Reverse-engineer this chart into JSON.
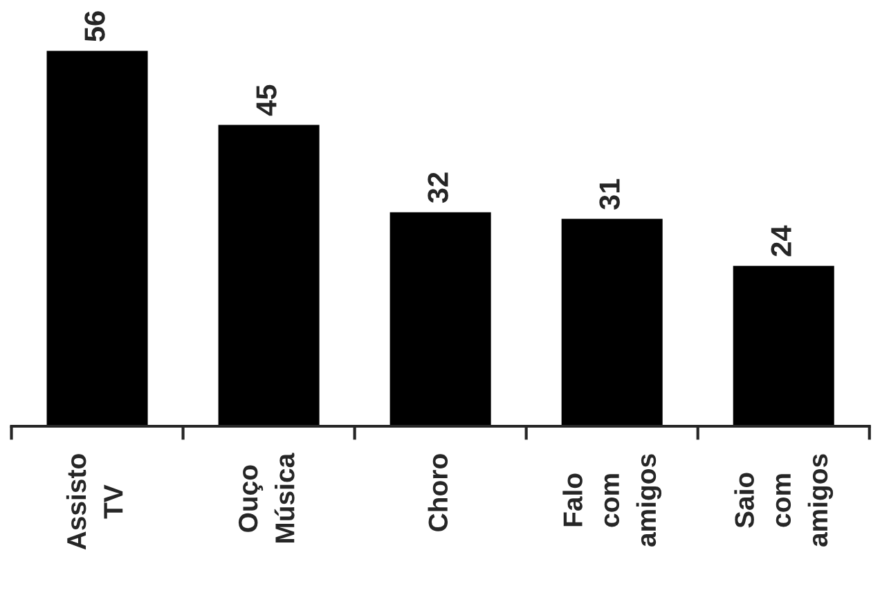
{
  "chart_data": {
    "type": "bar",
    "categories": [
      "Assisto\nTV",
      "Ouço\nMúsica",
      "Choro",
      "Falo\ncom\namigos",
      "Saio\ncom\namigos"
    ],
    "values": [
      56,
      45,
      32,
      31,
      24
    ],
    "color": "#000000",
    "data_labels": true,
    "tick_labels": "x",
    "grid": false,
    "legend": false
  }
}
